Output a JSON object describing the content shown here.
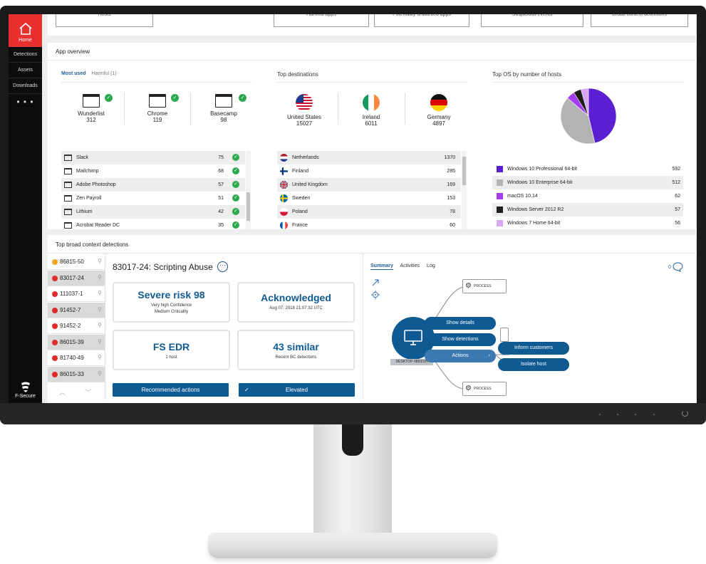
{
  "nav": {
    "home": "Home",
    "items": [
      "Detections",
      "Assets",
      "Downloads"
    ],
    "more": "• • •",
    "brand": "F-Secure"
  },
  "top_strip": [
    "Hosts",
    "",
    "Harmful apps",
    "Potentially unwanted apps",
    "Suspicious events",
    "Broad context detections"
  ],
  "app_overview": {
    "title": "App overview",
    "tab_active": "Most used",
    "tab_other": "Harmful (1)",
    "top_apps": [
      {
        "name": "Wunderlist",
        "count": "312"
      },
      {
        "name": "Chrome",
        "count": "119"
      },
      {
        "name": "Basecamp",
        "count": "98"
      }
    ],
    "apps": [
      {
        "name": "Slack",
        "count": "75"
      },
      {
        "name": "Mailchimp",
        "count": "68"
      },
      {
        "name": "Adobe Photoshop",
        "count": "57"
      },
      {
        "name": "Zen Payroll",
        "count": "51"
      },
      {
        "name": "Lithium",
        "count": "42"
      },
      {
        "name": "Acrobat Reader DC",
        "count": "35"
      }
    ],
    "destinations_title": "Top destinations",
    "top_destinations": [
      {
        "name": "United States",
        "count": "15027"
      },
      {
        "name": "Ireland",
        "count": "6011"
      },
      {
        "name": "Germany",
        "count": "4897"
      }
    ],
    "destinations": [
      {
        "name": "Netherlands",
        "count": "1370"
      },
      {
        "name": "Finland",
        "count": "285"
      },
      {
        "name": "United Kingdom",
        "count": "169"
      },
      {
        "name": "Sweden",
        "count": "153"
      },
      {
        "name": "Poland",
        "count": "78"
      },
      {
        "name": "France",
        "count": "60"
      }
    ],
    "os_title": "Top OS by number of hosts",
    "os": [
      {
        "name": "Windows 10 Professional 64-bit",
        "count": "592",
        "color": "#5b1fd1"
      },
      {
        "name": "Windows 10 Enterprise 64-bit",
        "count": "512",
        "color": "#b3b3b3"
      },
      {
        "name": "macOS 10.14",
        "count": "62",
        "color": "#a43cf0"
      },
      {
        "name": "Windows Server 2012 R2",
        "count": "57",
        "color": "#1e1e1e"
      },
      {
        "name": "Windows 7 Home 64-bit",
        "count": "56",
        "color": "#d9a6f5"
      }
    ]
  },
  "detections": {
    "title": "Top broad context detections",
    "list": [
      {
        "id": "86815-50",
        "color": "#f5a623"
      },
      {
        "id": "83017-24",
        "color": "#e02b2b"
      },
      {
        "id": "111037-1",
        "color": "#e02b2b"
      },
      {
        "id": "91452-7",
        "color": "#e02b2b"
      },
      {
        "id": "91452-2",
        "color": "#e02b2b"
      },
      {
        "id": "86015-39",
        "color": "#e02b2b"
      },
      {
        "id": "81740-49",
        "color": "#e02b2b"
      },
      {
        "id": "86015-33",
        "color": "#e02b2b"
      }
    ],
    "heading": "83017-24: Scripting Abuse",
    "risk": {
      "big": "Severe risk 98",
      "line1": "Very high Confidence",
      "line2": "Medium Criticality"
    },
    "status": {
      "big": "Acknowledged",
      "line1": "Aug 07, 2018 21:07:32 UTC"
    },
    "engine": {
      "big": "FS EDR",
      "line1": "1 host"
    },
    "similar": {
      "big": "43 similar",
      "line1": "Recent BC detections"
    },
    "recommended_btn": "Recommended actions",
    "elevated_btn": "Elevated",
    "check_mark": "✓"
  },
  "graph": {
    "tabs": [
      "Summary",
      "Activities",
      "Log"
    ],
    "comments": "0",
    "process": "PROCESS",
    "host": "DESKTOP-0893ISH",
    "show_details": "Show details",
    "show_detections": "Show detections",
    "actions": "Actions",
    "inform": "Inform customers",
    "isolate": "Isolate host",
    "chevron": "›"
  }
}
